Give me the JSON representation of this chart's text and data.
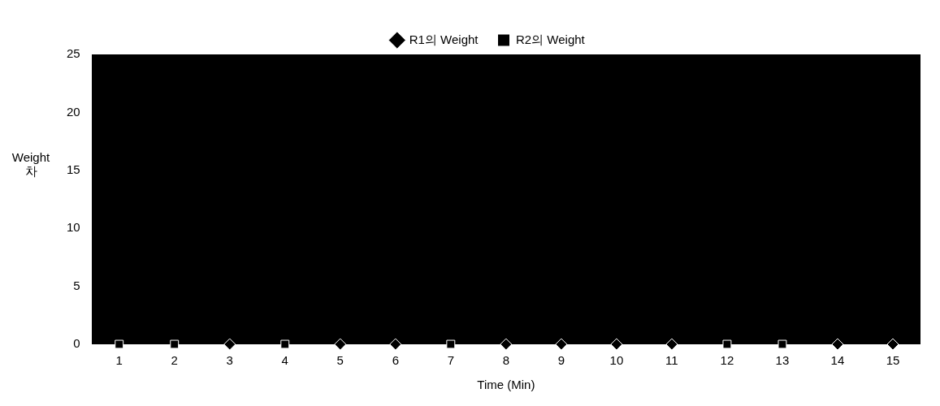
{
  "chart_data": {
    "type": "scatter",
    "xlabel": "Time (Min)",
    "ylabel": "Weight 차",
    "x": [
      1,
      2,
      3,
      4,
      5,
      6,
      7,
      8,
      9,
      10,
      11,
      12,
      13,
      14,
      15
    ],
    "xlim": [
      0.5,
      15.5
    ],
    "xticks": [
      1,
      2,
      3,
      4,
      5,
      6,
      7,
      8,
      9,
      10,
      11,
      12,
      13,
      14,
      15
    ],
    "ylim": [
      0,
      25
    ],
    "yticks": [
      0,
      5,
      10,
      15,
      20,
      25
    ],
    "grid": false,
    "legend": "top",
    "series": [
      {
        "name": "R1의 Weight",
        "color": "#000000",
        "marker": "diamond",
        "values": [
          null,
          null,
          0,
          null,
          0,
          0,
          null,
          0,
          0,
          0,
          0,
          null,
          null,
          0,
          0
        ]
      },
      {
        "name": "R2의 Weight",
        "color": "#000000",
        "marker": "square",
        "values": [
          0,
          0,
          null,
          0,
          null,
          null,
          0,
          null,
          null,
          null,
          null,
          0,
          0,
          null,
          null
        ]
      }
    ]
  }
}
